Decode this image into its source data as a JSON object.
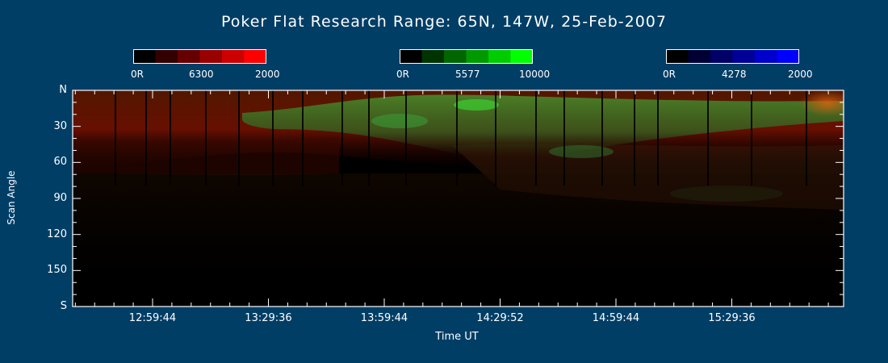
{
  "chart_data": {
    "type": "heatmap",
    "title": "Poker Flat Research Range: 65N, 147W, 25-Feb-2007",
    "xlabel": "Time UT",
    "ylabel": "Scan Angle",
    "x_ticks": [
      "12:59:44",
      "13:29:36",
      "13:59:44",
      "14:29:52",
      "14:59:44",
      "15:29:36"
    ],
    "y_ticks": [
      "N",
      "30",
      "60",
      "90",
      "120",
      "150",
      "S"
    ],
    "ylim": [
      0,
      180
    ],
    "colorbars": [
      {
        "name": "6300",
        "min_label": "0R",
        "mid_label": "6300",
        "max_label": "2000",
        "color": "#ff0000",
        "steps": [
          "#000000",
          "#330000",
          "#660000",
          "#990000",
          "#cc0000",
          "#ff0000"
        ]
      },
      {
        "name": "5577",
        "min_label": "0R",
        "mid_label": "5577",
        "max_label": "10000",
        "color": "#00ff00",
        "steps": [
          "#000000",
          "#003300",
          "#006600",
          "#009900",
          "#00cc00",
          "#00ff00"
        ]
      },
      {
        "name": "4278",
        "min_label": "0R",
        "mid_label": "4278",
        "max_label": "2000",
        "color": "#0000ff",
        "steps": [
          "#000000",
          "#000033",
          "#000066",
          "#000099",
          "#0000cc",
          "#0000ff"
        ]
      }
    ],
    "background_color": "#003e66"
  }
}
